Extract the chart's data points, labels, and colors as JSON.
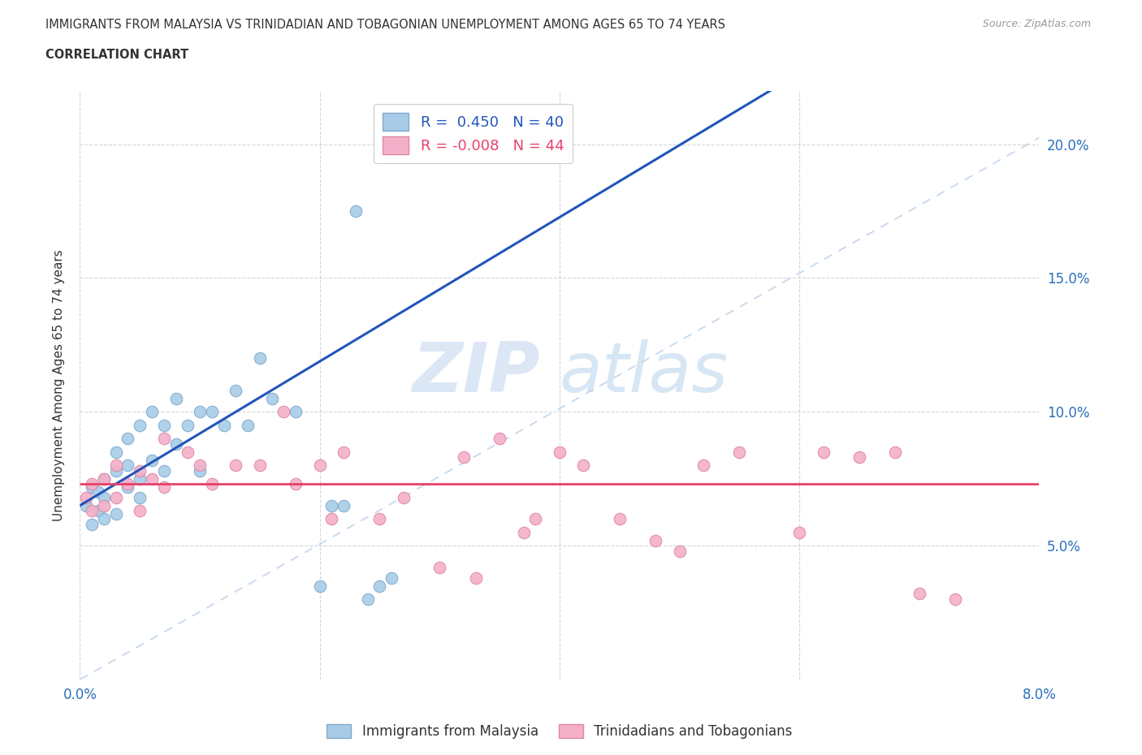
{
  "title_line1": "IMMIGRANTS FROM MALAYSIA VS TRINIDADIAN AND TOBAGONIAN UNEMPLOYMENT AMONG AGES 65 TO 74 YEARS",
  "title_line2": "CORRELATION CHART",
  "source_text": "Source: ZipAtlas.com",
  "ylabel": "Unemployment Among Ages 65 to 74 years",
  "xmin": 0.0,
  "xmax": 0.08,
  "ymin": 0.0,
  "ymax": 0.22,
  "xticks": [
    0.0,
    0.02,
    0.04,
    0.06,
    0.08
  ],
  "ytick_positions": [
    0.05,
    0.1,
    0.15,
    0.2
  ],
  "R_malaysia": 0.45,
  "N_malaysia": 40,
  "R_trini": -0.008,
  "N_trini": 44,
  "color_malaysia": "#a8cce8",
  "color_trini": "#f4b0c8",
  "line_color_malaysia": "#2255bb",
  "line_color_trini": "#e8406a",
  "diagonal_color": "#c0d4ec",
  "watermark_zip": "ZIP",
  "watermark_atlas": "atlas",
  "legend_label_malaysia": "Immigrants from Malaysia",
  "legend_label_trini": "Trinidadians and Tobagonians",
  "malaysia_x": [
    0.0005,
    0.001,
    0.001,
    0.0015,
    0.0015,
    0.002,
    0.002,
    0.002,
    0.003,
    0.003,
    0.003,
    0.004,
    0.004,
    0.004,
    0.005,
    0.005,
    0.005,
    0.006,
    0.006,
    0.007,
    0.007,
    0.008,
    0.008,
    0.009,
    0.01,
    0.01,
    0.011,
    0.012,
    0.013,
    0.014,
    0.015,
    0.016,
    0.018,
    0.02,
    0.021,
    0.022,
    0.023,
    0.024,
    0.025,
    0.026
  ],
  "malaysia_y": [
    0.065,
    0.058,
    0.072,
    0.063,
    0.07,
    0.06,
    0.068,
    0.075,
    0.062,
    0.078,
    0.085,
    0.072,
    0.08,
    0.09,
    0.068,
    0.075,
    0.095,
    0.082,
    0.1,
    0.078,
    0.095,
    0.088,
    0.105,
    0.095,
    0.078,
    0.1,
    0.1,
    0.095,
    0.108,
    0.095,
    0.12,
    0.105,
    0.1,
    0.035,
    0.065,
    0.065,
    0.175,
    0.03,
    0.035,
    0.038
  ],
  "trini_x": [
    0.0005,
    0.001,
    0.001,
    0.002,
    0.002,
    0.003,
    0.003,
    0.004,
    0.005,
    0.005,
    0.006,
    0.007,
    0.007,
    0.009,
    0.01,
    0.011,
    0.013,
    0.015,
    0.017,
    0.018,
    0.02,
    0.021,
    0.022,
    0.025,
    0.027,
    0.03,
    0.032,
    0.033,
    0.035,
    0.037,
    0.038,
    0.04,
    0.042,
    0.045,
    0.048,
    0.05,
    0.052,
    0.055,
    0.06,
    0.062,
    0.065,
    0.068,
    0.07,
    0.073
  ],
  "trini_y": [
    0.068,
    0.063,
    0.073,
    0.065,
    0.075,
    0.068,
    0.08,
    0.073,
    0.063,
    0.078,
    0.075,
    0.072,
    0.09,
    0.085,
    0.08,
    0.073,
    0.08,
    0.08,
    0.1,
    0.073,
    0.08,
    0.06,
    0.085,
    0.06,
    0.068,
    0.042,
    0.083,
    0.038,
    0.09,
    0.055,
    0.06,
    0.085,
    0.08,
    0.06,
    0.052,
    0.048,
    0.08,
    0.085,
    0.055,
    0.085,
    0.083,
    0.085,
    0.032,
    0.03
  ]
}
